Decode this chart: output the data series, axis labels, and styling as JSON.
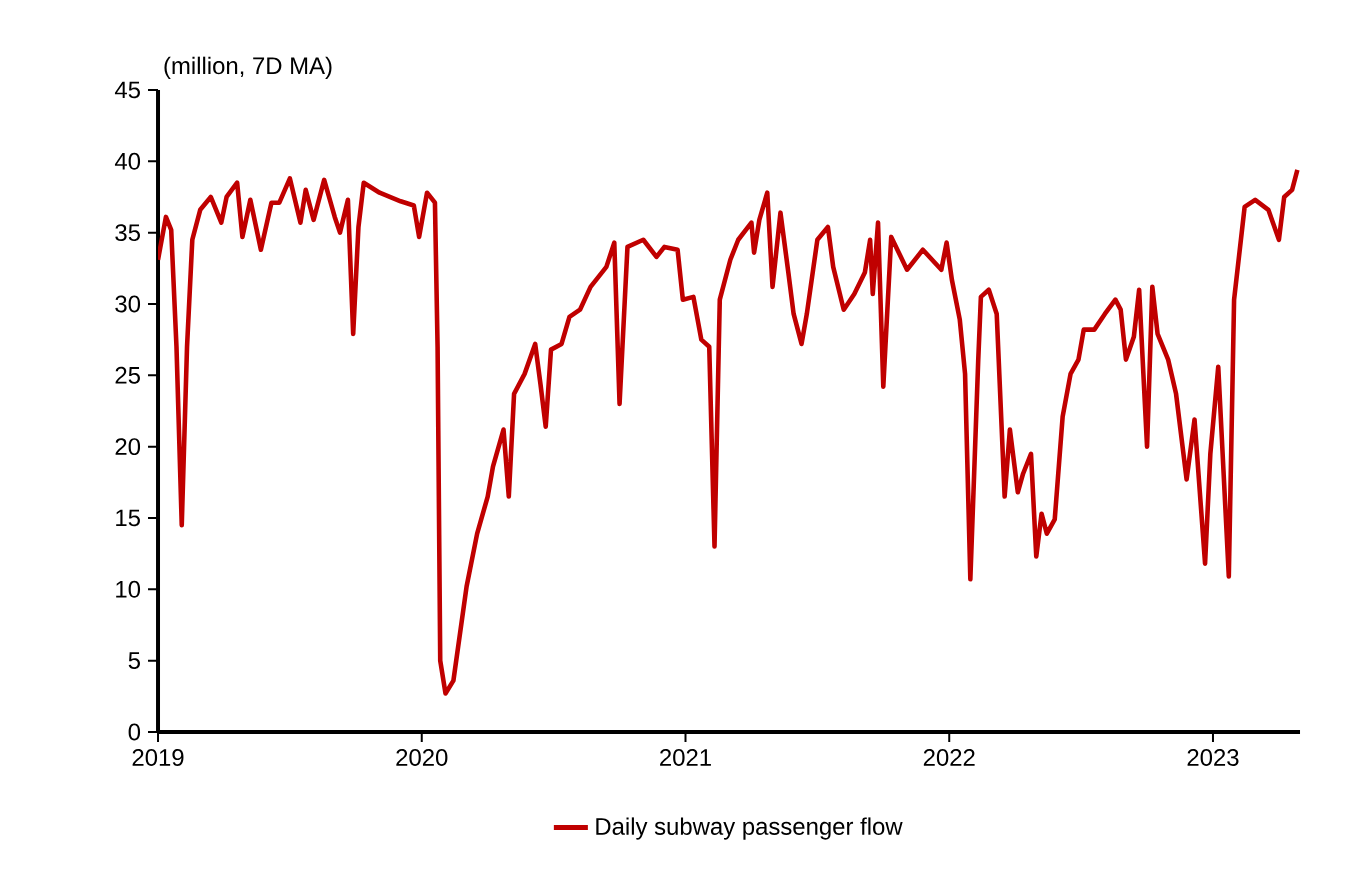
{
  "chart_data": {
    "type": "line",
    "ylabel": "(million, 7D MA)",
    "xlim": [
      2019,
      2023.33
    ],
    "ylim": [
      0,
      45
    ],
    "xticks": [
      2019,
      2020,
      2021,
      2022,
      2023
    ],
    "yticks": [
      0,
      5,
      10,
      15,
      20,
      25,
      30,
      35,
      40,
      45
    ],
    "grid": false,
    "legend": "bottom",
    "marker": "none",
    "line_style": "solid",
    "series": [
      {
        "name": "Daily subway passenger flow",
        "color": "#c00000",
        "x": [
          2019.0,
          2019.03,
          2019.05,
          2019.07,
          2019.09,
          2019.11,
          2019.13,
          2019.16,
          2019.2,
          2019.24,
          2019.26,
          2019.3,
          2019.32,
          2019.35,
          2019.39,
          2019.43,
          2019.46,
          2019.5,
          2019.54,
          2019.56,
          2019.59,
          2019.63,
          2019.67,
          2019.69,
          2019.72,
          2019.74,
          2019.76,
          2019.78,
          2019.84,
          2019.92,
          2019.97,
          2019.99,
          2020.02,
          2020.05,
          2020.06,
          2020.07,
          2020.09,
          2020.12,
          2020.17,
          2020.21,
          2020.25,
          2020.27,
          2020.31,
          2020.33,
          2020.35,
          2020.39,
          2020.43,
          2020.45,
          2020.47,
          2020.49,
          2020.53,
          2020.56,
          2020.6,
          2020.64,
          2020.7,
          2020.73,
          2020.75,
          2020.78,
          2020.84,
          2020.89,
          2020.92,
          2020.97,
          2020.99,
          2021.03,
          2021.06,
          2021.09,
          2021.11,
          2021.13,
          2021.17,
          2021.2,
          2021.25,
          2021.26,
          2021.28,
          2021.31,
          2021.33,
          2021.36,
          2021.39,
          2021.41,
          2021.44,
          2021.46,
          2021.5,
          2021.54,
          2021.56,
          2021.6,
          2021.64,
          2021.68,
          2021.7,
          2021.71,
          2021.73,
          2021.75,
          2021.78,
          2021.84,
          2021.9,
          2021.97,
          2021.99,
          2022.01,
          2022.04,
          2022.06,
          2022.08,
          2022.11,
          2022.12,
          2022.15,
          2022.18,
          2022.21,
          2022.23,
          2022.26,
          2022.28,
          2022.31,
          2022.33,
          2022.35,
          2022.37,
          2022.4,
          2022.43,
          2022.46,
          2022.49,
          2022.51,
          2022.55,
          2022.59,
          2022.63,
          2022.65,
          2022.67,
          2022.7,
          2022.72,
          2022.75,
          2022.77,
          2022.79,
          2022.83,
          2022.86,
          2022.9,
          2022.93,
          2022.97,
          2022.99,
          2023.02,
          2023.06,
          2023.08,
          2023.12,
          2023.16,
          2023.21,
          2023.25,
          2023.27,
          2023.3,
          2023.32
        ],
        "values": [
          33.1,
          36.1,
          35.2,
          27,
          14.5,
          27,
          34.5,
          36.6,
          37.5,
          35.7,
          37.5,
          38.5,
          34.7,
          37.3,
          33.8,
          37.1,
          37.1,
          38.8,
          35.7,
          38.0,
          35.9,
          38.7,
          36.1,
          35.0,
          37.3,
          27.9,
          35.4,
          38.5,
          37.8,
          37.2,
          36.9,
          34.7,
          37.8,
          37.1,
          27,
          5.0,
          2.7,
          3.6,
          10.2,
          13.9,
          16.5,
          18.6,
          21.2,
          16.5,
          23.7,
          25.1,
          27.2,
          24.4,
          21.4,
          26.8,
          27.2,
          29.1,
          29.6,
          31.2,
          32.6,
          34.3,
          23.0,
          34.0,
          34.5,
          33.3,
          34.0,
          33.8,
          30.3,
          30.5,
          27.5,
          27.0,
          13.0,
          30.3,
          33.1,
          34.5,
          35.7,
          33.6,
          35.9,
          37.8,
          31.2,
          36.4,
          32.2,
          29.3,
          27.2,
          29.3,
          34.5,
          35.4,
          32.6,
          29.6,
          30.7,
          32.2,
          34.5,
          30.7,
          35.7,
          24.2,
          34.7,
          32.4,
          33.8,
          32.4,
          34.3,
          31.7,
          28.9,
          25.1,
          10.7,
          26.1,
          30.5,
          31.0,
          29.3,
          16.5,
          21.2,
          16.8,
          18.1,
          19.5,
          12.3,
          15.3,
          13.9,
          14.9,
          22.1,
          25.1,
          26.1,
          28.2,
          28.2,
          29.3,
          30.3,
          29.6,
          26.1,
          27.7,
          31.0,
          20.0,
          31.2,
          27.9,
          26.1,
          23.7,
          17.7,
          21.9,
          11.8,
          19.5,
          25.6,
          10.9,
          30.3,
          36.8,
          37.3,
          36.6,
          34.5,
          37.5,
          38.0,
          39.4
        ]
      }
    ]
  }
}
